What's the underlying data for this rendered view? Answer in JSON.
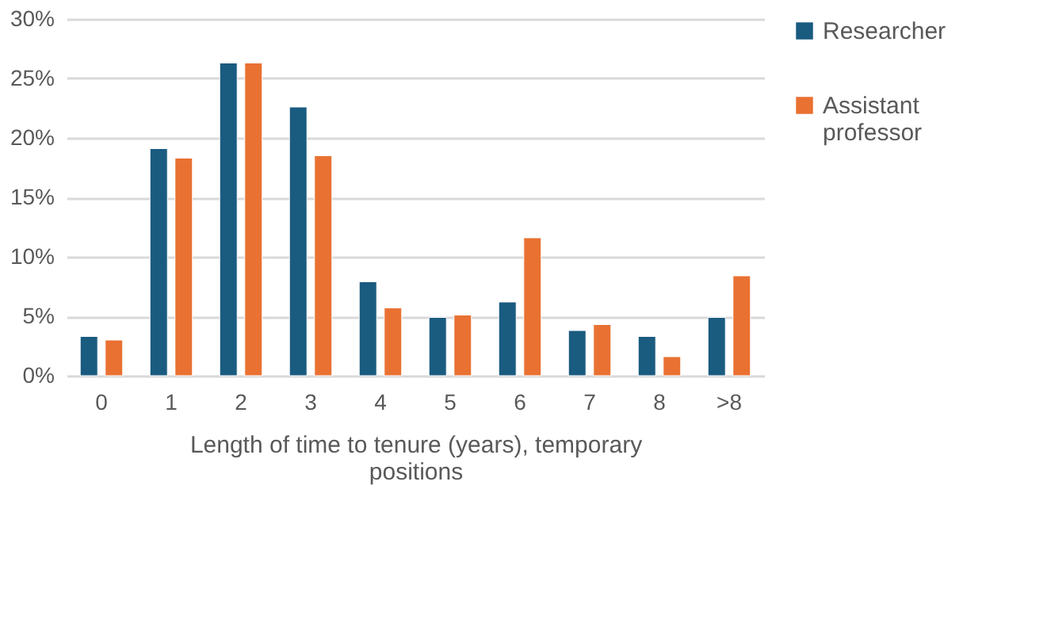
{
  "chart_data": {
    "type": "bar",
    "categories": [
      "0",
      "1",
      "2",
      "3",
      "4",
      "5",
      "6",
      "7",
      "8",
      ">8"
    ],
    "series": [
      {
        "name": "Researcher",
        "color": "#1a5b80",
        "values": [
          3.3,
          19.1,
          26.3,
          22.6,
          7.9,
          4.9,
          6.2,
          3.8,
          3.3,
          4.9
        ]
      },
      {
        "name": "Assistant professor",
        "color": "#e97132",
        "values": [
          3.0,
          18.3,
          26.3,
          18.5,
          5.7,
          5.1,
          11.6,
          4.3,
          1.6,
          8.4
        ]
      }
    ],
    "xlabel": "Length of time to tenure (years), temporary positions",
    "ylim": [
      0,
      30
    ],
    "yticks": [
      {
        "value": 0,
        "label": "0%"
      },
      {
        "value": 5,
        "label": "5%"
      },
      {
        "value": 10,
        "label": "10%"
      },
      {
        "value": 15,
        "label": "15%"
      },
      {
        "value": 20,
        "label": "20%"
      },
      {
        "value": 25,
        "label": "25%"
      },
      {
        "value": 30,
        "label": "30%"
      }
    ],
    "grid": "y",
    "legend": "right"
  }
}
